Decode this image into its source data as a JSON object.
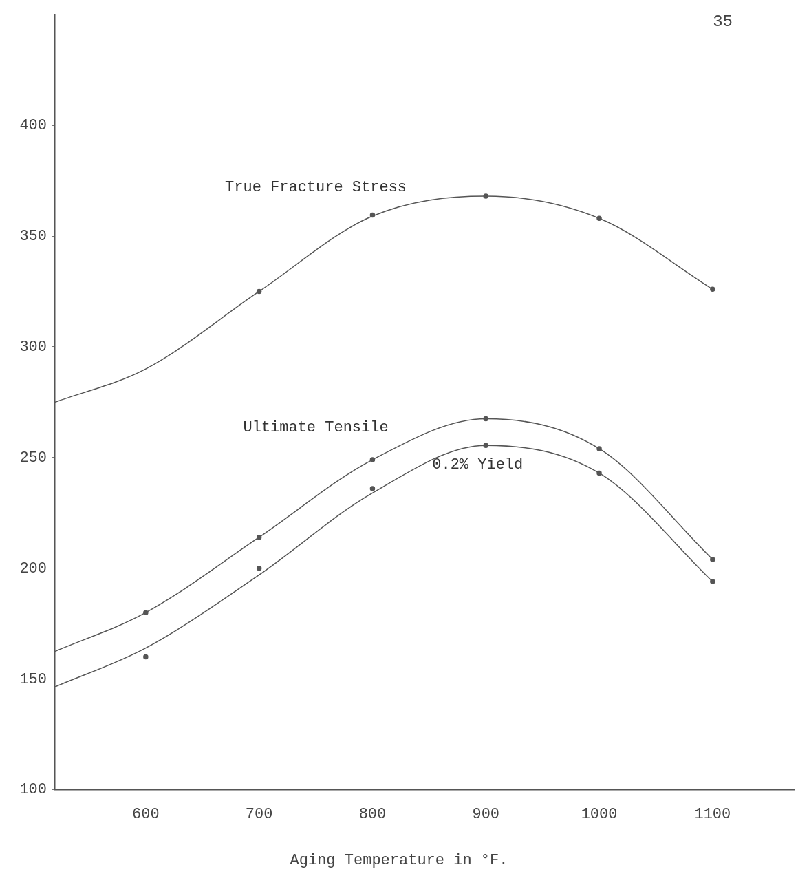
{
  "chart_data": {
    "type": "line",
    "xlabel": "Aging Temperature in °F.",
    "annotations": [
      "35"
    ],
    "series": [
      {
        "name": "True Fracture Stress",
        "color": "#555555",
        "x": [
          520,
          600,
          700,
          800,
          900,
          1000,
          1100
        ],
        "values": [
          275,
          290,
          325,
          359,
          368,
          358,
          326
        ],
        "marker": "none"
      },
      {
        "name": "Ultimate Tensile",
        "color": "#555555",
        "x": [
          520,
          600,
          700,
          800,
          900,
          1000,
          1100
        ],
        "values": [
          162.5,
          180,
          214,
          249,
          267.5,
          254,
          204
        ],
        "marker": "none"
      },
      {
        "name": "0.2% Yield",
        "color": "#555555",
        "x": [
          520,
          600,
          700,
          800,
          900,
          1000,
          1100
        ],
        "values": [
          146.5,
          164,
          197,
          234,
          255.5,
          243,
          194
        ],
        "marker": "none"
      },
      {
        "type": "scatter",
        "color": "#555555",
        "x": [
          700,
          800,
          900,
          1000,
          1100
        ],
        "values": [
          325,
          359.5,
          368,
          358,
          326
        ],
        "marker": "circle"
      },
      {
        "type": "scatter",
        "color": "#555555",
        "x": [
          600,
          700,
          800,
          900,
          1000,
          1100
        ],
        "values": [
          180,
          214,
          249,
          267.5,
          254,
          204
        ],
        "marker": "circle"
      },
      {
        "type": "scatter",
        "color": "#555555",
        "x": [
          600,
          700,
          800,
          900,
          1000,
          1100
        ],
        "values": [
          160,
          200,
          236,
          255.5,
          243,
          194
        ],
        "marker": "circle"
      }
    ],
    "xlim": [
      520,
      1172
    ],
    "xticks": [
      600,
      700,
      800,
      900,
      1000,
      1100
    ],
    "ylim": [
      100,
      450
    ],
    "yticks": [
      100,
      150,
      200,
      250,
      300,
      350,
      400
    ],
    "grid": false,
    "legend": false
  }
}
